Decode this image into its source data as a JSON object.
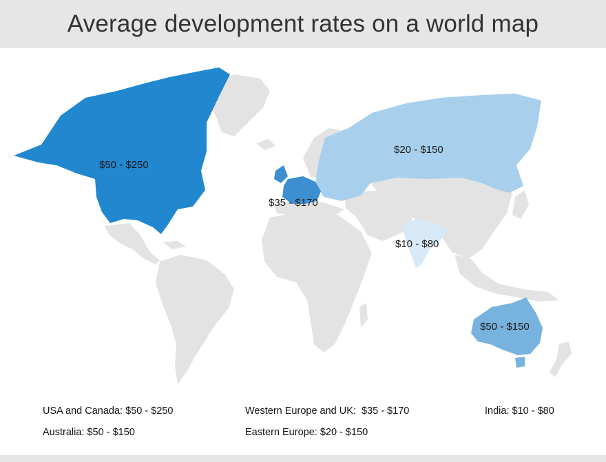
{
  "title": "Average development rates on a world map",
  "regions": [
    {
      "key": "usa-canada",
      "map_label": "$50 - $250",
      "color": "#2187cf"
    },
    {
      "key": "western-europe-uk",
      "map_label": "$35 - $170",
      "color": "#3d8fd1"
    },
    {
      "key": "eastern-europe",
      "map_label": "$20 - $150",
      "color": "#a8cfeb"
    },
    {
      "key": "india",
      "map_label": "$10 - $80",
      "color": "#d7e9f6"
    },
    {
      "key": "australia",
      "map_label": "$50 - $150",
      "color": "#78b2de"
    }
  ],
  "other_land_color": "#e3e3e3",
  "legend": {
    "usa_canada": {
      "name": "USA and Canada:",
      "value": "$50 - $250"
    },
    "australia": {
      "name": "Australia:",
      "value": "$50 - $150"
    },
    "western_europe_uk": {
      "name": "Western Europe and UK:",
      "value": "$35 - $170"
    },
    "eastern_europe": {
      "name": "Eastern Europe:",
      "value": "$20 - $150"
    },
    "india": {
      "name": "India:",
      "value": "$10 - $80"
    }
  }
}
